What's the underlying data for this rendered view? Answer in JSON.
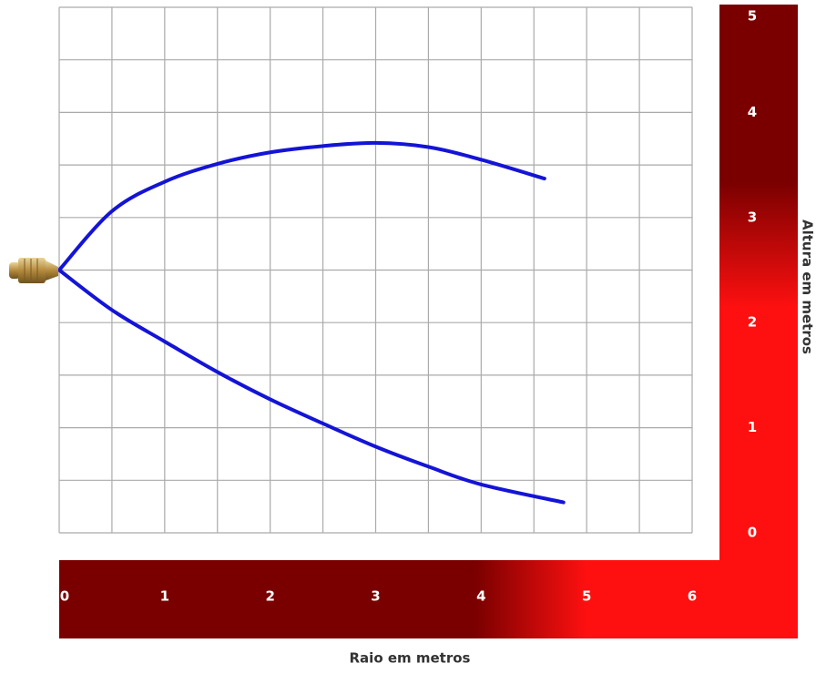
{
  "chart_data": {
    "type": "line",
    "x_label": "Raio em metros",
    "y_label": "Altura em metros",
    "xlim": [
      0,
      6
    ],
    "ylim": [
      0,
      5
    ],
    "xticks": [
      0,
      1,
      2,
      3,
      4,
      5,
      6
    ],
    "yticks": [
      0,
      1,
      2,
      3,
      4,
      5
    ],
    "x_minor_grid": [
      0.5,
      1.5,
      2.5,
      3.5,
      4.5,
      5.5
    ],
    "y_minor_grid": [
      0.5,
      1.5,
      2.5,
      3.5,
      4.5
    ],
    "grid": true,
    "grid_color": "#aaaaaa",
    "axis_dark_color": "#7a0000",
    "axis_bright_color": "#ff1010",
    "series": [
      {
        "color": "#1414d6",
        "x": [
          0,
          0.5,
          1.0,
          1.5,
          2.0,
          2.5,
          3.0,
          3.5,
          4.0,
          4.6
        ],
        "values": [
          2.5,
          3.06,
          3.34,
          3.51,
          3.62,
          3.68,
          3.71,
          3.67,
          3.55,
          3.37
        ]
      },
      {
        "color": "#1414d6",
        "x": [
          0,
          0.5,
          1.0,
          1.5,
          2.0,
          2.5,
          3.0,
          3.5,
          4.0,
          4.78
        ],
        "values": [
          2.5,
          2.12,
          1.82,
          1.53,
          1.27,
          1.04,
          0.82,
          0.63,
          0.46,
          0.29
        ]
      }
    ]
  }
}
